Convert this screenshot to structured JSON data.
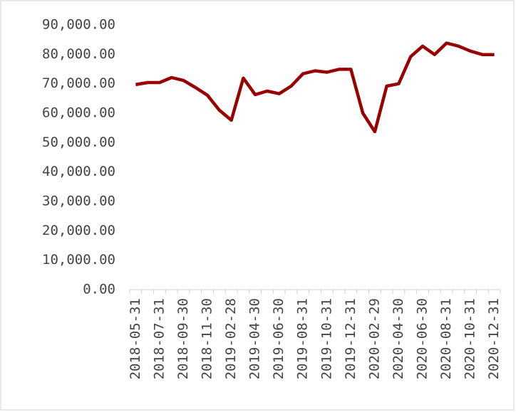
{
  "chart_data": {
    "type": "line",
    "categories": [
      "2018-05-31",
      null,
      "2018-07-31",
      null,
      "2018-09-30",
      null,
      "2018-11-30",
      null,
      "2019-02-28",
      null,
      "2019-04-30",
      null,
      "2019-06-30",
      null,
      "2019-08-31",
      null,
      "2019-10-31",
      null,
      "2019-12-31",
      null,
      "2020-02-29",
      null,
      "2020-04-30",
      null,
      "2020-06-30",
      null,
      "2020-08-31",
      null,
      "2020-10-31",
      null,
      "2020-12-31"
    ],
    "series": [
      {
        "color": "#990000",
        "values": [
          69700,
          70400,
          70400,
          72100,
          71100,
          68700,
          66100,
          61000,
          57600,
          71900,
          66300,
          67500,
          66600,
          69200,
          73400,
          74400,
          73900,
          74900,
          74900,
          60000,
          53700,
          69200,
          70000,
          79200,
          82800,
          79900,
          83800,
          82800,
          81100,
          79900,
          79900
        ]
      }
    ],
    "ylim": [
      0,
      90000
    ],
    "yticks": [
      {
        "value": 0,
        "label": "0.00"
      },
      {
        "value": 10000,
        "label": "10,000.00"
      },
      {
        "value": 20000,
        "label": "20,000.00"
      },
      {
        "value": 30000,
        "label": "30,000.00"
      },
      {
        "value": 40000,
        "label": "40,000.00"
      },
      {
        "value": 50000,
        "label": "50,000.00"
      },
      {
        "value": 60000,
        "label": "60,000.00"
      },
      {
        "value": 70000,
        "label": "70,000.00"
      },
      {
        "value": 80000,
        "label": "80,000.00"
      },
      {
        "value": 90000,
        "label": "90,000.00"
      }
    ],
    "grid": false
  }
}
